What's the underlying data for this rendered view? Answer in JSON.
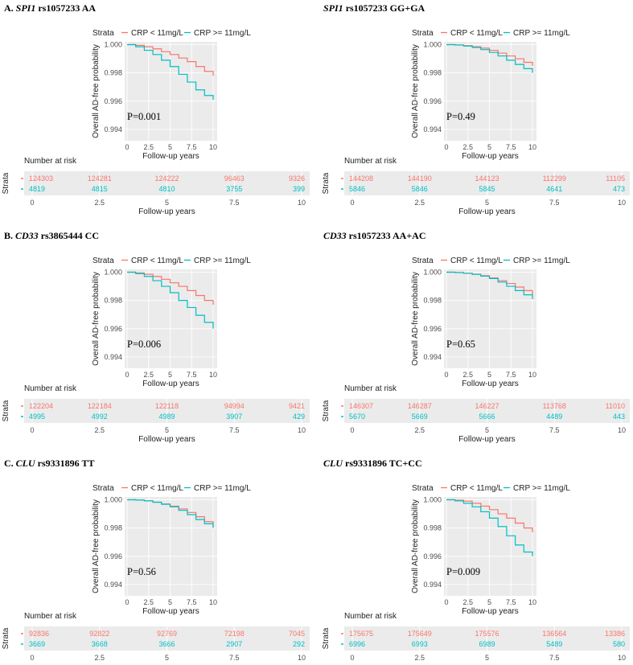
{
  "colors": {
    "low": "#f8766d",
    "high": "#00bfc4",
    "panel_bg": "#ebebeb",
    "grid": "#ffffff"
  },
  "common": {
    "legend_title": "Strata",
    "legend_low": "CRP < 11mg/L",
    "legend_high": "CRP >= 11mg/L",
    "ylabel": "Overall AD-free probability",
    "xlabel": "Follow-up years",
    "risk_title": "Number at risk",
    "risk_ylabel": "Strata",
    "risk_xticks": [
      "0",
      "2.5",
      "5",
      "7.5",
      "10"
    ],
    "x_ticks": [
      "0",
      "2.5",
      "5",
      "7.5",
      "10"
    ],
    "y_ticks": [
      "1.000",
      "0.998",
      "0.996",
      "0.994"
    ]
  },
  "chart_data": [
    {
      "type": "line",
      "title_prefix": "A. ",
      "title_gene": "SPI1",
      "title_rest": " rs1057233 AA",
      "p_value": "P=0.001",
      "xlim": [
        0,
        10
      ],
      "ylim": [
        0.9932,
        1.0002
      ],
      "series": [
        {
          "name": "CRP < 11mg/L",
          "x": [
            0,
            1,
            2,
            3,
            4,
            5,
            6,
            7,
            8,
            9,
            10
          ],
          "y": [
            1.0,
            0.99995,
            0.99985,
            0.9997,
            0.9995,
            0.9993,
            0.99905,
            0.9988,
            0.99845,
            0.9981,
            0.9978
          ]
        },
        {
          "name": "CRP >= 11mg/L",
          "x": [
            0,
            1,
            2,
            3,
            4,
            5,
            6,
            7,
            8,
            9,
            10
          ],
          "y": [
            1.0,
            0.99985,
            0.9996,
            0.9993,
            0.9989,
            0.99845,
            0.9979,
            0.99735,
            0.9968,
            0.9964,
            0.9961
          ]
        }
      ],
      "risk": {
        "low": [
          "124303",
          "124281",
          "124222",
          "96463",
          "9326"
        ],
        "high": [
          "4819",
          "4815",
          "4810",
          "3755",
          "399"
        ]
      }
    },
    {
      "type": "line",
      "title_prefix": "",
      "title_gene": "SPI1",
      "title_rest": " rs1057233 GG+GA",
      "p_value": "P=0.49",
      "xlim": [
        0,
        10
      ],
      "ylim": [
        0.9932,
        1.0002
      ],
      "series": [
        {
          "name": "CRP < 11mg/L",
          "x": [
            0,
            1,
            2,
            3,
            4,
            5,
            6,
            7,
            8,
            9,
            10
          ],
          "y": [
            1.0,
            0.99998,
            0.99993,
            0.99985,
            0.99975,
            0.9996,
            0.9994,
            0.9992,
            0.999,
            0.99875,
            0.9985
          ]
        },
        {
          "name": "CRP >= 11mg/L",
          "x": [
            0,
            1,
            2,
            3,
            4,
            5,
            6,
            7,
            8,
            9,
            10
          ],
          "y": [
            1.0,
            0.99997,
            0.9999,
            0.9998,
            0.99965,
            0.99945,
            0.9992,
            0.9989,
            0.9986,
            0.9983,
            0.998
          ]
        }
      ],
      "risk": {
        "low": [
          "144208",
          "144190",
          "144123",
          "112299",
          "11105"
        ],
        "high": [
          "5846",
          "5846",
          "5845",
          "4641",
          "473"
        ]
      }
    },
    {
      "type": "line",
      "title_prefix": "B. ",
      "title_gene": "CD33",
      "title_rest": " rs3865444 CC",
      "p_value": "P=0.006",
      "xlim": [
        0,
        10
      ],
      "ylim": [
        0.9932,
        1.0002
      ],
      "series": [
        {
          "name": "CRP < 11mg/L",
          "x": [
            0,
            1,
            2,
            3,
            4,
            5,
            6,
            7,
            8,
            9,
            10
          ],
          "y": [
            1.0,
            0.99995,
            0.99985,
            0.9997,
            0.9995,
            0.99925,
            0.999,
            0.9987,
            0.99835,
            0.998,
            0.9977
          ]
        },
        {
          "name": "CRP >= 11mg/L",
          "x": [
            0,
            1,
            2,
            3,
            4,
            5,
            6,
            7,
            8,
            9,
            10
          ],
          "y": [
            1.0,
            0.9999,
            0.9997,
            0.9994,
            0.999,
            0.99855,
            0.998,
            0.9975,
            0.99695,
            0.99645,
            0.996
          ]
        }
      ],
      "risk": {
        "low": [
          "122204",
          "122184",
          "122118",
          "94994",
          "9421"
        ],
        "high": [
          "4995",
          "4992",
          "4989",
          "3907",
          "429"
        ]
      }
    },
    {
      "type": "line",
      "title_prefix": "",
      "title_gene": "CD33",
      "title_rest": " rs1057233 AA+AC",
      "p_value": "P=0.65",
      "xlim": [
        0,
        10
      ],
      "ylim": [
        0.9932,
        1.0002
      ],
      "series": [
        {
          "name": "CRP < 11mg/L",
          "x": [
            0,
            1,
            2,
            3,
            4,
            5,
            6,
            7,
            8,
            9,
            10
          ],
          "y": [
            1.0,
            0.99998,
            0.99993,
            0.99985,
            0.99975,
            0.9996,
            0.9994,
            0.9992,
            0.99895,
            0.9987,
            0.9984
          ]
        },
        {
          "name": "CRP >= 11mg/L",
          "x": [
            0,
            1,
            2,
            3,
            4,
            5,
            6,
            7,
            8,
            9,
            10
          ],
          "y": [
            1.0,
            0.99997,
            0.99992,
            0.99985,
            0.99972,
            0.99955,
            0.9993,
            0.999,
            0.9987,
            0.9984,
            0.9981
          ]
        }
      ],
      "risk": {
        "low": [
          "146307",
          "146287",
          "146227",
          "113768",
          "11010"
        ],
        "high": [
          "5670",
          "5669",
          "5666",
          "4489",
          "443"
        ]
      }
    },
    {
      "type": "line",
      "title_prefix": "C. ",
      "title_gene": "CLU",
      "title_rest": " rs9331896 TT",
      "p_value": "P=0.56",
      "xlim": [
        0,
        10
      ],
      "ylim": [
        0.9932,
        1.0002
      ],
      "series": [
        {
          "name": "CRP < 11mg/L",
          "x": [
            0,
            1,
            2,
            3,
            4,
            5,
            6,
            7,
            8,
            9,
            10
          ],
          "y": [
            1.0,
            0.99998,
            0.99992,
            0.99982,
            0.9997,
            0.99955,
            0.99935,
            0.9991,
            0.9988,
            0.99845,
            0.9981
          ]
        },
        {
          "name": "CRP >= 11mg/L",
          "x": [
            0,
            1,
            2,
            3,
            4,
            5,
            6,
            7,
            8,
            9,
            10
          ],
          "y": [
            1.0,
            0.99998,
            0.99993,
            0.99983,
            0.99968,
            0.9995,
            0.99925,
            0.99895,
            0.9986,
            0.9983,
            0.998
          ]
        }
      ],
      "risk": {
        "low": [
          "92836",
          "92822",
          "92769",
          "72198",
          "7045"
        ],
        "high": [
          "3669",
          "3668",
          "3666",
          "2907",
          "292"
        ]
      }
    },
    {
      "type": "line",
      "title_prefix": "",
      "title_gene": "CLU",
      "title_rest": " rs9331896 TC+CC",
      "p_value": "P=0.009",
      "xlim": [
        0,
        10
      ],
      "ylim": [
        0.9932,
        1.0002
      ],
      "series": [
        {
          "name": "CRP < 11mg/L",
          "x": [
            0,
            1,
            2,
            3,
            4,
            5,
            6,
            7,
            8,
            9,
            10
          ],
          "y": [
            1.0,
            0.99997,
            0.9999,
            0.99975,
            0.99955,
            0.9993,
            0.999,
            0.9987,
            0.99835,
            0.998,
            0.9977
          ]
        },
        {
          "name": "CRP >= 11mg/L",
          "x": [
            0,
            1,
            2,
            3,
            4,
            5,
            6,
            7,
            8,
            9,
            10
          ],
          "y": [
            1.0,
            0.99992,
            0.99975,
            0.9995,
            0.99915,
            0.9987,
            0.9981,
            0.99745,
            0.9968,
            0.9963,
            0.996
          ]
        }
      ],
      "risk": {
        "low": [
          "175675",
          "175649",
          "175576",
          "136564",
          "13386"
        ],
        "high": [
          "6996",
          "6993",
          "6989",
          "5489",
          "580"
        ]
      }
    }
  ]
}
